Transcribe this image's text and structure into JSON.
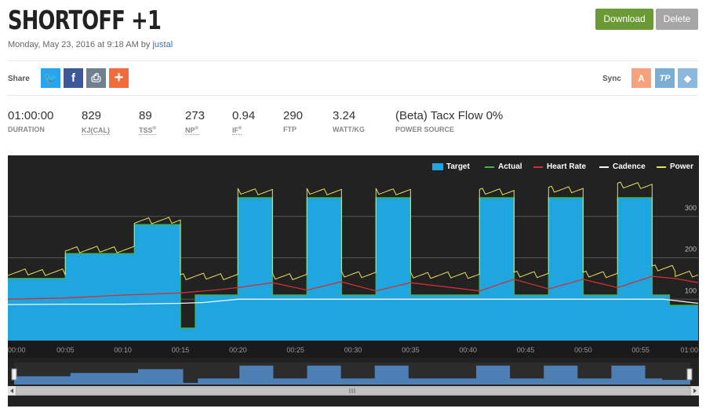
{
  "header": {
    "title": "SHORTOFF +1",
    "date_text": "Monday, May 23, 2016 at 9:18 AM by ",
    "author": "justal"
  },
  "actions": {
    "download_label": "Download",
    "delete_label": "Delete"
  },
  "share": {
    "label": "Share",
    "icons": [
      {
        "name": "twitter-icon",
        "glyph": "🐦",
        "color": "#2aa3ef"
      },
      {
        "name": "facebook-icon",
        "glyph": "f",
        "color": "#3b5998"
      },
      {
        "name": "print-icon",
        "glyph": "⎙",
        "color": "#708090"
      },
      {
        "name": "add-icon",
        "glyph": "+",
        "color": "#f26b3a"
      }
    ]
  },
  "sync": {
    "label": "Sync",
    "icons": [
      {
        "name": "strava-icon",
        "glyph": "A",
        "color": "#f7a27a"
      },
      {
        "name": "trainingpeaks-icon",
        "glyph": "TP",
        "color": "#7aaed6"
      },
      {
        "name": "dropbox-icon",
        "glyph": "◆",
        "color": "#8cb8de"
      }
    ]
  },
  "stats": [
    {
      "value": "01:00:00",
      "label": "DURATION",
      "sup": ""
    },
    {
      "value": "829",
      "label": "KJ(CAL)",
      "sup": ""
    },
    {
      "value": "89",
      "label": "TSS",
      "sup": "®"
    },
    {
      "value": "273",
      "label": "NP",
      "sup": "®"
    },
    {
      "value": "0.94",
      "label": "IF",
      "sup": "®"
    },
    {
      "value": "290",
      "label": "FTP",
      "sup": ""
    },
    {
      "value": "3.24",
      "label": "WATT/KG",
      "sup": ""
    },
    {
      "value": "(Beta) Tacx Flow 0%",
      "label": "POWER SOURCE",
      "sup": ""
    }
  ],
  "legend": {
    "target": "Target",
    "actual": "Actual",
    "heart_rate": "Heart Rate",
    "cadence": "Cadence",
    "power": "Power"
  },
  "colors": {
    "target": "#1fa6e0",
    "actual": "#3fb34f",
    "heart_rate": "#d32f2f",
    "cadence": "#f5f5f5",
    "power": "#e8e05a",
    "background": "#222222"
  },
  "chart_data": {
    "type": "area",
    "x_ticks": [
      "00:00",
      "00:05",
      "00:10",
      "00:15",
      "00:20",
      "00:25",
      "00:30",
      "00:35",
      "00:40",
      "00:45",
      "00:50",
      "00:55",
      "01:00"
    ],
    "y_ticks": [
      "100",
      "200",
      "300"
    ],
    "y_values": [
      100,
      200,
      300
    ],
    "ylim": [
      0,
      400
    ],
    "xlim": [
      0,
      60
    ],
    "target_segments": [
      [
        0,
        5,
        150
      ],
      [
        5,
        11,
        210
      ],
      [
        11,
        15,
        280
      ],
      [
        15,
        15.3,
        30
      ],
      [
        15.3,
        16.3,
        30
      ],
      [
        16.3,
        20,
        110
      ],
      [
        20,
        23,
        345
      ],
      [
        23,
        26,
        110
      ],
      [
        26,
        29,
        345
      ],
      [
        29,
        32,
        110
      ],
      [
        32,
        35,
        345
      ],
      [
        35,
        41,
        110
      ],
      [
        41,
        44,
        345
      ],
      [
        44,
        47,
        110
      ],
      [
        47,
        50,
        345
      ],
      [
        50,
        53,
        110
      ],
      [
        53,
        56,
        345
      ],
      [
        56,
        57.5,
        110
      ],
      [
        57.5,
        60,
        85
      ]
    ],
    "power_segments": [
      [
        0,
        5,
        165
      ],
      [
        5,
        11,
        220
      ],
      [
        11,
        15,
        290
      ],
      [
        15,
        20,
        155
      ],
      [
        20,
        23,
        360
      ],
      [
        23,
        26,
        155
      ],
      [
        26,
        29,
        360
      ],
      [
        29,
        32,
        160
      ],
      [
        32,
        35,
        360
      ],
      [
        35,
        41,
        158
      ],
      [
        41,
        44,
        360
      ],
      [
        44,
        47,
        160
      ],
      [
        47,
        50,
        365
      ],
      [
        50,
        53,
        160
      ],
      [
        53,
        56,
        375
      ],
      [
        56,
        58,
        175
      ],
      [
        58,
        60,
        160
      ]
    ],
    "heart_rate": [
      [
        0,
        100
      ],
      [
        5,
        103
      ],
      [
        10,
        110
      ],
      [
        15,
        115
      ],
      [
        18,
        122
      ],
      [
        20,
        128
      ],
      [
        23,
        140
      ],
      [
        26,
        122
      ],
      [
        29,
        142
      ],
      [
        32,
        120
      ],
      [
        35,
        140
      ],
      [
        41,
        120
      ],
      [
        44,
        148
      ],
      [
        47,
        125
      ],
      [
        50,
        148
      ],
      [
        53,
        128
      ],
      [
        56,
        155
      ],
      [
        58,
        150
      ],
      [
        60,
        140
      ]
    ],
    "cadence": [
      [
        0,
        87
      ],
      [
        5,
        88
      ],
      [
        10,
        88
      ],
      [
        15,
        90
      ],
      [
        17,
        92
      ],
      [
        20,
        100
      ],
      [
        25,
        100
      ],
      [
        30,
        100
      ],
      [
        35,
        100
      ],
      [
        40,
        100
      ],
      [
        45,
        100
      ],
      [
        50,
        100
      ],
      [
        55,
        100
      ],
      [
        57,
        100
      ],
      [
        60,
        90
      ]
    ]
  }
}
